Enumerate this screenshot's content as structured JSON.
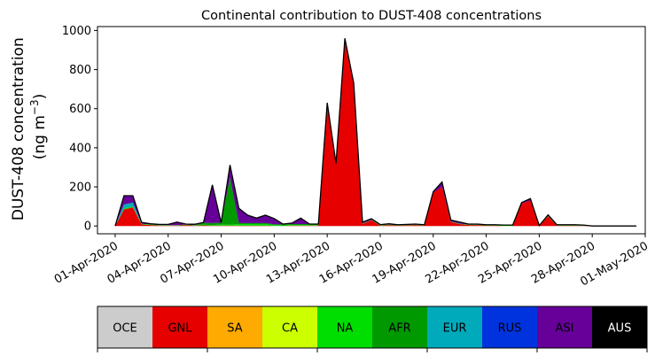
{
  "chart_data": {
    "type": "area",
    "title": "Continental contribution to DUST-408 concentrations",
    "ylabel_line1": "DUST-408 concentration",
    "ylabel_line2_prefix": "(ng m",
    "ylabel_line2_sup": "−3",
    "ylabel_line2_suffix": ")",
    "ylim": [
      -40,
      1020
    ],
    "yticks": [
      0,
      200,
      400,
      600,
      800,
      1000
    ],
    "xlim": [
      "2020-03-31",
      "2020-05-01"
    ],
    "xtick_dates": [
      "2020-04-01",
      "2020-04-04",
      "2020-04-07",
      "2020-04-10",
      "2020-04-13",
      "2020-04-16",
      "2020-04-19",
      "2020-04-22",
      "2020-04-25",
      "2020-04-28",
      "2020-05-01"
    ],
    "xtick_labels": [
      "01-Apr-2020",
      "04-Apr-2020",
      "07-Apr-2020",
      "10-Apr-2020",
      "13-Apr-2020",
      "16-Apr-2020",
      "19-Apr-2020",
      "22-Apr-2020",
      "25-Apr-2020",
      "28-Apr-2020",
      "01-May-2020"
    ],
    "x": [
      "2020-04-01 00:00",
      "2020-04-01 12:00",
      "2020-04-02 00:00",
      "2020-04-02 12:00",
      "2020-04-03 00:00",
      "2020-04-03 12:00",
      "2020-04-04 00:00",
      "2020-04-04 12:00",
      "2020-04-05 00:00",
      "2020-04-05 12:00",
      "2020-04-06 00:00",
      "2020-04-06 12:00",
      "2020-04-07 00:00",
      "2020-04-07 12:00",
      "2020-04-08 00:00",
      "2020-04-08 12:00",
      "2020-04-09 00:00",
      "2020-04-09 12:00",
      "2020-04-10 00:00",
      "2020-04-10 12:00",
      "2020-04-11 00:00",
      "2020-04-11 12:00",
      "2020-04-12 00:00",
      "2020-04-12 12:00",
      "2020-04-13 00:00",
      "2020-04-13 12:00",
      "2020-04-14 00:00",
      "2020-04-14 12:00",
      "2020-04-15 00:00",
      "2020-04-15 12:00",
      "2020-04-16 00:00",
      "2020-04-16 12:00",
      "2020-04-17 00:00",
      "2020-04-17 12:00",
      "2020-04-18 00:00",
      "2020-04-18 12:00",
      "2020-04-19 00:00",
      "2020-04-19 12:00",
      "2020-04-20 00:00",
      "2020-04-20 12:00",
      "2020-04-21 00:00",
      "2020-04-21 12:00",
      "2020-04-22 00:00",
      "2020-04-22 12:00",
      "2020-04-23 00:00",
      "2020-04-23 12:00",
      "2020-04-24 00:00",
      "2020-04-24 12:00",
      "2020-04-25 00:00",
      "2020-04-25 12:00",
      "2020-04-26 00:00",
      "2020-04-26 12:00",
      "2020-04-27 00:00",
      "2020-04-27 12:00",
      "2020-04-28 00:00",
      "2020-04-28 12:00",
      "2020-04-29 00:00",
      "2020-04-29 12:00",
      "2020-04-30 00:00",
      "2020-04-30 12:00"
    ],
    "series": [
      {
        "name": "OCE",
        "color": "#cccccc",
        "values": [
          0,
          0,
          0,
          0,
          0,
          0,
          0,
          0,
          0,
          0,
          0,
          0,
          0,
          0,
          0,
          0,
          0,
          0,
          0,
          0,
          0,
          0,
          0,
          0,
          0,
          0,
          0,
          0,
          0,
          0,
          0,
          0,
          0,
          0,
          0,
          0,
          0,
          0,
          0,
          0,
          0,
          0,
          0,
          0,
          0,
          0,
          0,
          0,
          0,
          0,
          0,
          0,
          0,
          0,
          0,
          0,
          0,
          0,
          0,
          0
        ]
      },
      {
        "name": "GNL",
        "color": "#e60000",
        "values": [
          0,
          85,
          95,
          8,
          5,
          2,
          2,
          2,
          4,
          2,
          3,
          2,
          2,
          2,
          2,
          2,
          2,
          2,
          0,
          0,
          2,
          2,
          2,
          2,
          630,
          320,
          950,
          720,
          10,
          30,
          2,
          5,
          2,
          3,
          5,
          2,
          170,
          200,
          20,
          10,
          5,
          5,
          2,
          2,
          0,
          0,
          115,
          130,
          0,
          50,
          2,
          2,
          2,
          1,
          0,
          0,
          0,
          0,
          0,
          0
        ]
      },
      {
        "name": "SA",
        "color": "#ffaa00",
        "values": [
          0,
          0,
          0,
          0,
          0,
          0,
          0,
          0,
          0,
          0,
          0,
          0,
          0,
          0,
          0,
          0,
          0,
          0,
          0,
          0,
          0,
          0,
          0,
          0,
          0,
          0,
          0,
          0,
          0,
          0,
          0,
          0,
          0,
          0,
          0,
          0,
          0,
          0,
          0,
          0,
          0,
          0,
          0,
          0,
          0,
          0,
          0,
          0,
          0,
          0,
          0,
          0,
          0,
          0,
          0,
          0,
          0,
          0,
          0,
          0
        ]
      },
      {
        "name": "CA",
        "color": "#ccff00",
        "values": [
          0,
          0,
          0,
          0,
          0,
          0,
          0,
          0,
          0,
          0,
          0,
          0,
          0,
          0,
          0,
          0,
          0,
          0,
          0,
          0,
          0,
          0,
          0,
          0,
          0,
          0,
          0,
          0,
          0,
          0,
          0,
          0,
          0,
          0,
          0,
          0,
          0,
          0,
          0,
          0,
          0,
          0,
          0,
          0,
          0,
          0,
          0,
          0,
          0,
          0,
          0,
          0,
          0,
          0,
          0,
          0,
          0,
          0,
          0,
          0
        ]
      },
      {
        "name": "NA",
        "color": "#00dd00",
        "values": [
          0,
          5,
          5,
          3,
          3,
          2,
          2,
          2,
          3,
          2,
          3,
          3,
          5,
          5,
          8,
          8,
          8,
          8,
          5,
          3,
          3,
          3,
          3,
          3,
          0,
          0,
          0,
          0,
          2,
          2,
          3,
          2,
          2,
          2,
          2,
          2,
          0,
          0,
          2,
          2,
          2,
          2,
          2,
          2,
          5,
          5,
          0,
          0,
          2,
          2,
          2,
          2,
          2,
          2,
          0,
          0,
          0,
          0,
          0,
          0
        ]
      },
      {
        "name": "AFR",
        "color": "#009900",
        "values": [
          0,
          0,
          0,
          0,
          0,
          0,
          0,
          0,
          0,
          0,
          10,
          10,
          10,
          240,
          5,
          5,
          5,
          5,
          3,
          5,
          5,
          5,
          5,
          5,
          0,
          0,
          0,
          0,
          0,
          0,
          0,
          0,
          0,
          0,
          0,
          0,
          0,
          0,
          0,
          0,
          0,
          0,
          0,
          0,
          0,
          0,
          0,
          0,
          0,
          0,
          0,
          0,
          0,
          0,
          0,
          0,
          0,
          0,
          0,
          0
        ]
      },
      {
        "name": "EUR",
        "color": "#00aabb",
        "values": [
          0,
          20,
          20,
          0,
          0,
          0,
          0,
          0,
          0,
          0,
          0,
          0,
          0,
          0,
          0,
          0,
          0,
          0,
          0,
          0,
          0,
          0,
          0,
          0,
          0,
          0,
          0,
          0,
          0,
          0,
          0,
          0,
          0,
          0,
          0,
          0,
          0,
          0,
          0,
          0,
          0,
          0,
          0,
          0,
          0,
          0,
          0,
          0,
          0,
          0,
          0,
          0,
          0,
          0,
          0,
          0,
          0,
          0,
          0,
          0
        ]
      },
      {
        "name": "RUS",
        "color": "#0033dd",
        "values": [
          0,
          0,
          0,
          0,
          0,
          0,
          0,
          0,
          0,
          0,
          0,
          0,
          0,
          0,
          0,
          0,
          0,
          0,
          0,
          0,
          0,
          0,
          0,
          0,
          0,
          0,
          0,
          0,
          0,
          0,
          0,
          0,
          0,
          0,
          0,
          0,
          0,
          0,
          0,
          0,
          0,
          0,
          0,
          0,
          0,
          0,
          0,
          0,
          0,
          0,
          0,
          0,
          0,
          0,
          0,
          0,
          0,
          0,
          0,
          0
        ]
      },
      {
        "name": "ASI",
        "color": "#660099",
        "values": [
          0,
          45,
          35,
          7,
          3,
          4,
          4,
          16,
          3,
          5,
          2,
          195,
          0,
          65,
          75,
          40,
          25,
          40,
          30,
          2,
          5,
          30,
          0,
          0,
          0,
          0,
          10,
          10,
          8,
          5,
          2,
          4,
          2,
          3,
          3,
          2,
          5,
          25,
          8,
          8,
          3,
          3,
          2,
          2,
          0,
          0,
          5,
          10,
          0,
          5,
          2,
          2,
          2,
          2,
          0,
          0,
          0,
          0,
          0,
          0
        ]
      },
      {
        "name": "AUS",
        "color": "#000000",
        "values": [
          0,
          0,
          0,
          0,
          0,
          0,
          0,
          0,
          0,
          0,
          0,
          0,
          0,
          0,
          0,
          0,
          0,
          0,
          0,
          0,
          0,
          0,
          0,
          0,
          0,
          0,
          0,
          0,
          0,
          0,
          0,
          0,
          0,
          0,
          0,
          0,
          0,
          0,
          0,
          0,
          0,
          0,
          0,
          0,
          0,
          0,
          0,
          0,
          0,
          0,
          0,
          0,
          0,
          0,
          0,
          0,
          0,
          0,
          0,
          0
        ]
      }
    ],
    "legend_placement": "bottom",
    "legend_text_colors": [
      "#000000",
      "#000000",
      "#000000",
      "#000000",
      "#000000",
      "#000000",
      "#000000",
      "#000000",
      "#000000",
      "#ffffff"
    ],
    "grid": false
  }
}
